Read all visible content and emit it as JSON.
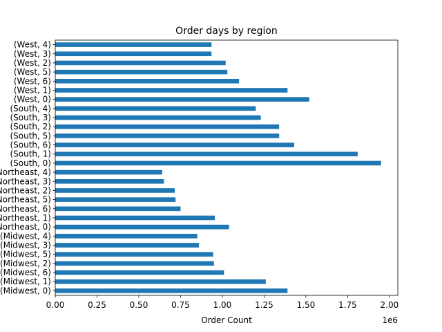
{
  "chart_data": {
    "type": "bar",
    "orientation": "horizontal",
    "title": "Order days by region",
    "xlabel": "Order Count",
    "ylabel": "",
    "x_multiplier_label": "1e6",
    "xlim": [
      0,
      2.05
    ],
    "x_ticks": [
      0.0,
      0.25,
      0.5,
      0.75,
      1.0,
      1.25,
      1.5,
      1.75,
      2.0
    ],
    "x_tick_labels": [
      "0.00",
      "0.25",
      "0.50",
      "0.75",
      "1.00",
      "1.25",
      "1.50",
      "1.75",
      "2.00"
    ],
    "bar_color": "#1f77b4",
    "grid": false,
    "categories": [
      "(Midwest, 0)",
      "(Midwest, 1)",
      "(Midwest, 6)",
      "(Midwest, 2)",
      "(Midwest, 5)",
      "(Midwest, 3)",
      "(Midwest, 4)",
      "(Northeast, 0)",
      "(Northeast, 1)",
      "(Northeast, 6)",
      "(Northeast, 5)",
      "(Northeast, 2)",
      "(Northeast, 3)",
      "(Northeast, 4)",
      "(South, 0)",
      "(South, 1)",
      "(South, 6)",
      "(South, 5)",
      "(South, 2)",
      "(South, 3)",
      "(South, 4)",
      "(West, 0)",
      "(West, 1)",
      "(West, 6)",
      "(West, 5)",
      "(West, 2)",
      "(West, 3)",
      "(West, 4)"
    ],
    "values": [
      1.39,
      1.26,
      1.01,
      0.95,
      0.945,
      0.86,
      0.85,
      1.04,
      0.955,
      0.75,
      0.72,
      0.715,
      0.65,
      0.64,
      1.95,
      1.81,
      1.43,
      1.34,
      1.34,
      1.23,
      1.2,
      1.52,
      1.39,
      1.1,
      1.03,
      1.02,
      0.935,
      0.935
    ]
  }
}
